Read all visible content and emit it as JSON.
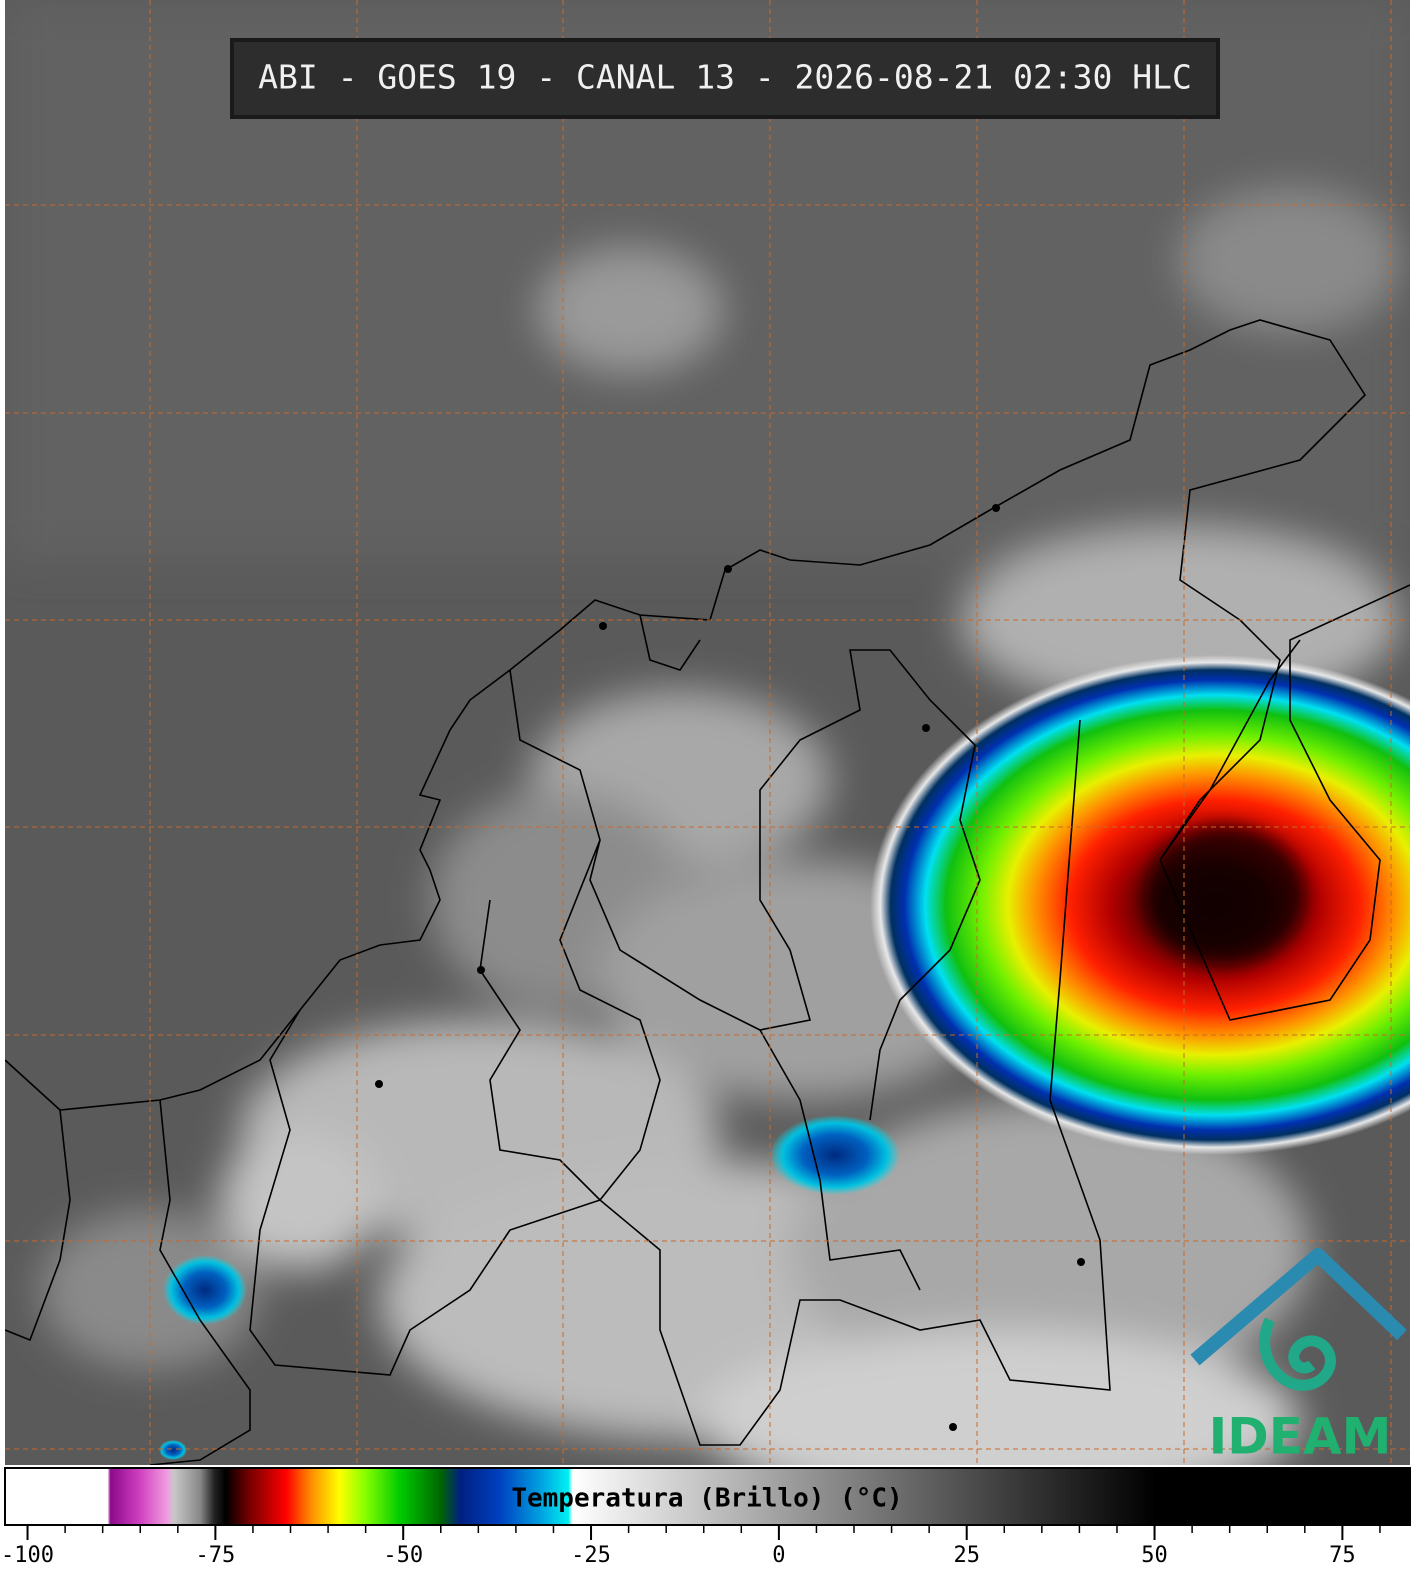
{
  "header": {
    "title": "ABI - GOES 19 - CANAL 13 - 2026-08-21 02:30 HLC"
  },
  "colorbar": {
    "label": "Temperatura (Brillo) (°C)",
    "ticks": [
      -100,
      -75,
      -50,
      -25,
      0,
      25,
      50,
      75
    ],
    "lim": [
      -103,
      84
    ]
  },
  "logo": {
    "text": "IDEAM"
  }
}
